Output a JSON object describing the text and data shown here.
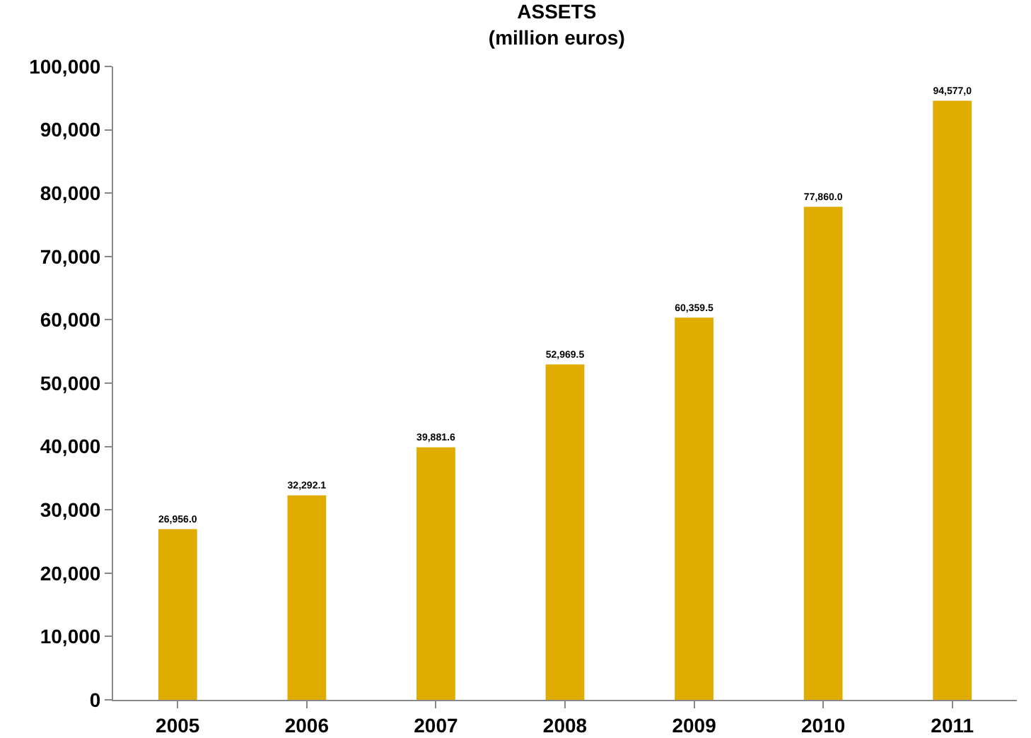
{
  "chart_data": {
    "type": "bar",
    "title": "ASSETS\n(million euros)",
    "categories": [
      "2005",
      "2006",
      "2007",
      "2008",
      "2009",
      "2010",
      "2011"
    ],
    "values": [
      26956.0,
      32292.1,
      39881.6,
      52969.5,
      60359.5,
      77860.0,
      94577.0
    ],
    "value_labels": [
      "26,956.0",
      "32,292.1",
      "39,881.6",
      "52,969.5",
      "60,359.5",
      "77,860.0",
      "94,577,0"
    ],
    "color": "#e0ac00",
    "ylim": [
      0,
      100000
    ],
    "yticks": [
      0,
      {
        "value": 10000,
        "label": "10,000"
      },
      {
        "value": 20000,
        "label": "20,000"
      },
      {
        "value": 30000,
        "label": "30,000"
      },
      {
        "value": 40000,
        "label": "40,000"
      },
      {
        "value": 50000,
        "label": "50,000"
      },
      {
        "value": 60000,
        "label": "60,000"
      },
      {
        "value": 70000,
        "label": "70,000"
      },
      {
        "value": 80000,
        "label": "80,000"
      },
      {
        "value": 90000,
        "label": "90,000"
      },
      {
        "value": 100000,
        "label": "100,000"
      }
    ],
    "grid": false,
    "legend": false
  }
}
